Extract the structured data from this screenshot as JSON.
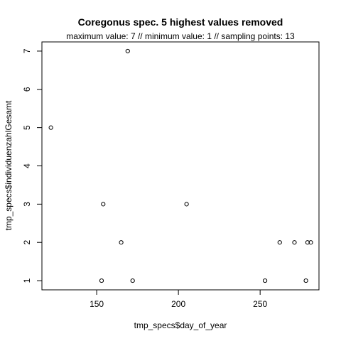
{
  "chart_data": {
    "type": "scatter",
    "title": "Coregonus spec.  5 highest values removed",
    "subtitle": "maximum value: 7  //  minimum value: 1  // sampling points: 13",
    "xlabel": "tmp_specs$day_of_year",
    "ylabel": "tmp_specs$individuenzahlGesamt",
    "xlim": [
      116.5,
      286
    ],
    "ylim": [
      0.76,
      7.24
    ],
    "xticks": [
      150,
      200,
      250
    ],
    "yticks": [
      1,
      2,
      3,
      4,
      5,
      6,
      7
    ],
    "grid": false,
    "legend": "none",
    "marker": "open-circle",
    "points": [
      {
        "x": 122,
        "y": 5
      },
      {
        "x": 153,
        "y": 1
      },
      {
        "x": 154,
        "y": 3
      },
      {
        "x": 165,
        "y": 2
      },
      {
        "x": 169,
        "y": 7
      },
      {
        "x": 172,
        "y": 1
      },
      {
        "x": 205,
        "y": 3
      },
      {
        "x": 253,
        "y": 1
      },
      {
        "x": 262,
        "y": 2
      },
      {
        "x": 271,
        "y": 2
      },
      {
        "x": 278,
        "y": 1
      },
      {
        "x": 279,
        "y": 2
      },
      {
        "x": 281,
        "y": 2
      }
    ]
  }
}
